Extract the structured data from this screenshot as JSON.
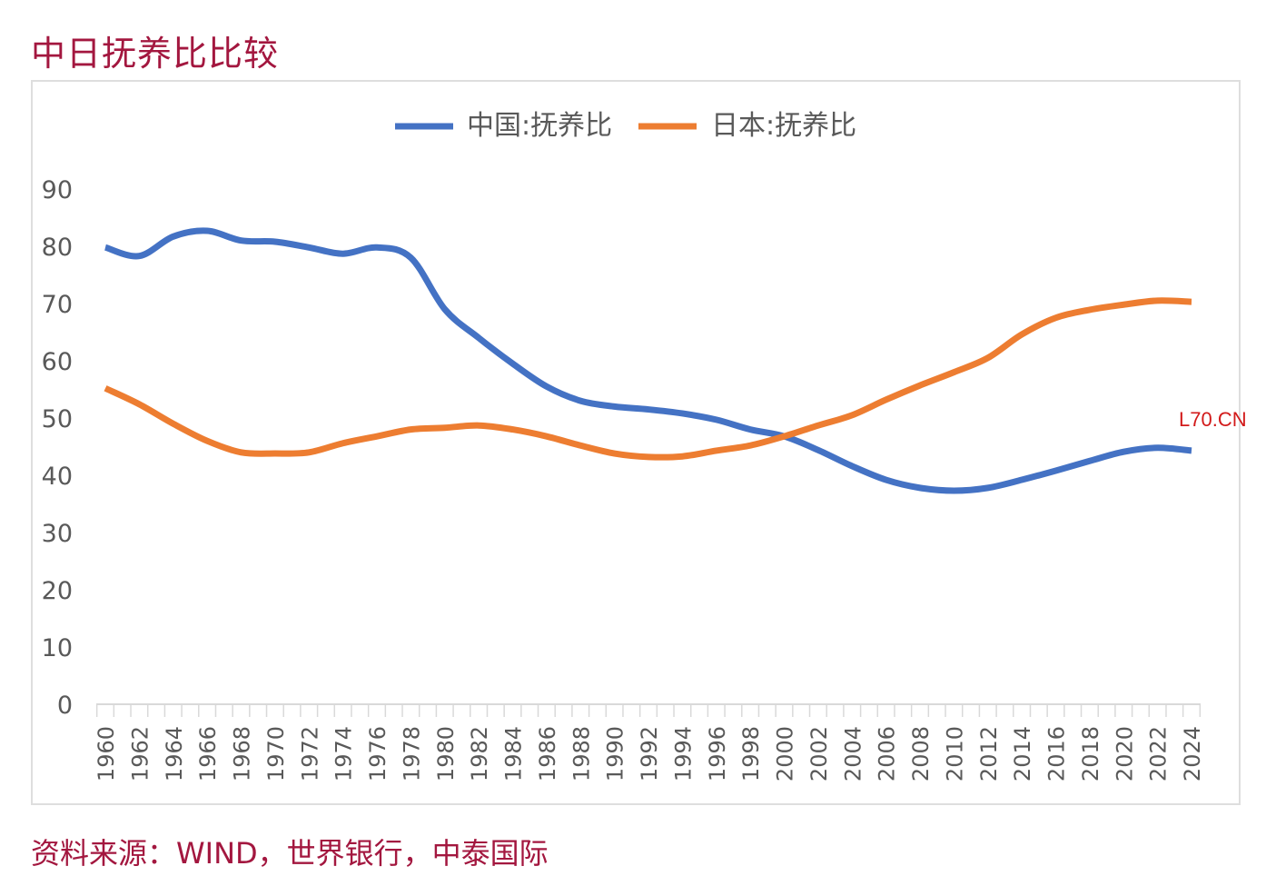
{
  "title": "中日抚养比比较",
  "source": "资料来源：WIND，世界银行，中泰国际",
  "watermark": "L70.CN",
  "colors": {
    "china": "#4472c4",
    "japan": "#ed7d31",
    "title": "#a3173f",
    "axis_text": "#595959"
  },
  "chart_data": {
    "type": "line",
    "title": "",
    "xlabel": "",
    "ylabel": "",
    "ylim": [
      0,
      90
    ],
    "yticks": [
      0,
      10,
      20,
      30,
      40,
      50,
      60,
      70,
      80,
      90
    ],
    "grid": false,
    "legend_position": "top-center",
    "x": [
      1960,
      1962,
      1964,
      1966,
      1968,
      1970,
      1972,
      1974,
      1976,
      1978,
      1980,
      1982,
      1984,
      1986,
      1988,
      1990,
      1992,
      1994,
      1996,
      1998,
      2000,
      2002,
      2004,
      2006,
      2008,
      2010,
      2012,
      2014,
      2016,
      2018,
      2020,
      2022,
      2024
    ],
    "xtick_labels": [
      "1960",
      "1962",
      "1964",
      "1966",
      "1968",
      "1970",
      "1972",
      "1974",
      "1976",
      "1978",
      "1980",
      "1982",
      "1984",
      "1986",
      "1988",
      "1990",
      "1992",
      "1994",
      "1996",
      "1998",
      "2000",
      "2002",
      "2004",
      "2006",
      "2008",
      "2010",
      "2012",
      "2014",
      "2016",
      "2018",
      "2020",
      "2022",
      "2024"
    ],
    "series": [
      {
        "name": "中国:抚养比",
        "color": "#4472c4",
        "values": [
          79.8,
          78.3,
          81.7,
          82.7,
          81.0,
          80.8,
          79.8,
          78.7,
          79.8,
          78.0,
          69.0,
          64.0,
          59.5,
          55.5,
          53.0,
          52.0,
          51.5,
          50.8,
          49.7,
          48.0,
          46.8,
          44.4,
          41.6,
          39.2,
          37.8,
          37.3,
          37.8,
          39.2,
          40.8,
          42.5,
          44.1,
          44.8,
          44.3
        ]
      },
      {
        "name": "日本:抚养比",
        "color": "#ed7d31",
        "values": [
          55.2,
          52.4,
          49.0,
          46.0,
          44.0,
          43.8,
          44.0,
          45.6,
          46.8,
          48.0,
          48.3,
          48.7,
          48.0,
          46.8,
          45.2,
          43.8,
          43.2,
          43.3,
          44.3,
          45.2,
          46.8,
          48.7,
          50.5,
          53.2,
          55.7,
          58.0,
          60.5,
          64.6,
          67.5,
          68.9,
          69.8,
          70.5,
          70.3
        ]
      }
    ]
  }
}
